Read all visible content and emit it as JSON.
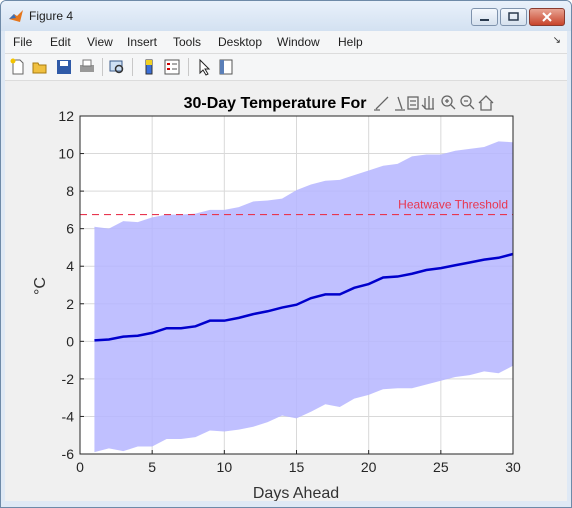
{
  "window": {
    "title": "Figure 4"
  },
  "menu": [
    "File",
    "Edit",
    "View",
    "Insert",
    "Tools",
    "Desktop",
    "Window",
    "Help"
  ],
  "menu_expand": "↘",
  "toolbar": [
    "new-figure",
    "open-file",
    "save",
    "print",
    "print-preview",
    "link",
    "insert-colorbar",
    "insert-legend",
    "edit-plot",
    "property-inspector"
  ],
  "axes_toolbar": [
    "brush",
    "data-tips",
    "restore-view",
    "pan",
    "zoom-in",
    "zoom-out",
    "home"
  ],
  "colors": {
    "band": "#b5b5ff",
    "line": "#0000cc",
    "threshold": "#e8364f",
    "grid": "#d9d9d9"
  },
  "chart_data": {
    "type": "area",
    "title": "30-Day Temperature For",
    "xlabel": "Days Ahead",
    "ylabel": "°C",
    "xlim": [
      0,
      30
    ],
    "ylim": [
      -6,
      12
    ],
    "xticks": [
      "0",
      "5",
      "10",
      "15",
      "20",
      "25",
      "30"
    ],
    "yticks": [
      "12",
      "10",
      "8",
      "6",
      "4",
      "2",
      "0",
      "-2",
      "-4",
      "-6"
    ],
    "grid": true,
    "x": [
      1,
      2,
      3,
      4,
      5,
      6,
      7,
      8,
      9,
      10,
      11,
      12,
      13,
      14,
      15,
      16,
      17,
      18,
      19,
      20,
      21,
      22,
      23,
      24,
      25,
      26,
      27,
      28,
      29,
      30
    ],
    "series": [
      {
        "role": "mean",
        "values": [
          0.05,
          0.1,
          0.25,
          0.3,
          0.45,
          0.7,
          0.7,
          0.8,
          1.1,
          1.1,
          1.25,
          1.45,
          1.6,
          1.8,
          1.95,
          2.3,
          2.5,
          2.5,
          2.85,
          3.05,
          3.4,
          3.45,
          3.6,
          3.8,
          3.9,
          4.05,
          4.2,
          4.35,
          4.45,
          4.65
        ]
      },
      {
        "role": "upper",
        "values": [
          6.1,
          6.0,
          6.4,
          6.35,
          6.6,
          6.75,
          6.75,
          6.8,
          7.0,
          7.0,
          7.15,
          7.45,
          7.5,
          7.6,
          8.05,
          8.35,
          8.55,
          8.6,
          8.85,
          9.1,
          9.35,
          9.45,
          9.85,
          9.95,
          9.95,
          10.15,
          10.25,
          10.35,
          10.65,
          10.6
        ]
      },
      {
        "role": "lower",
        "values": [
          -5.9,
          -5.7,
          -5.85,
          -5.6,
          -5.6,
          -5.2,
          -5.2,
          -5.1,
          -4.75,
          -4.8,
          -4.7,
          -4.55,
          -4.3,
          -3.95,
          -4.1,
          -3.75,
          -3.35,
          -3.5,
          -3.05,
          -2.85,
          -2.55,
          -2.5,
          -2.5,
          -2.3,
          -2.1,
          -1.9,
          -1.8,
          -1.6,
          -1.7,
          -1.3
        ]
      }
    ],
    "threshold": {
      "value": 6.75,
      "label": "Heatwave Threshold"
    }
  }
}
